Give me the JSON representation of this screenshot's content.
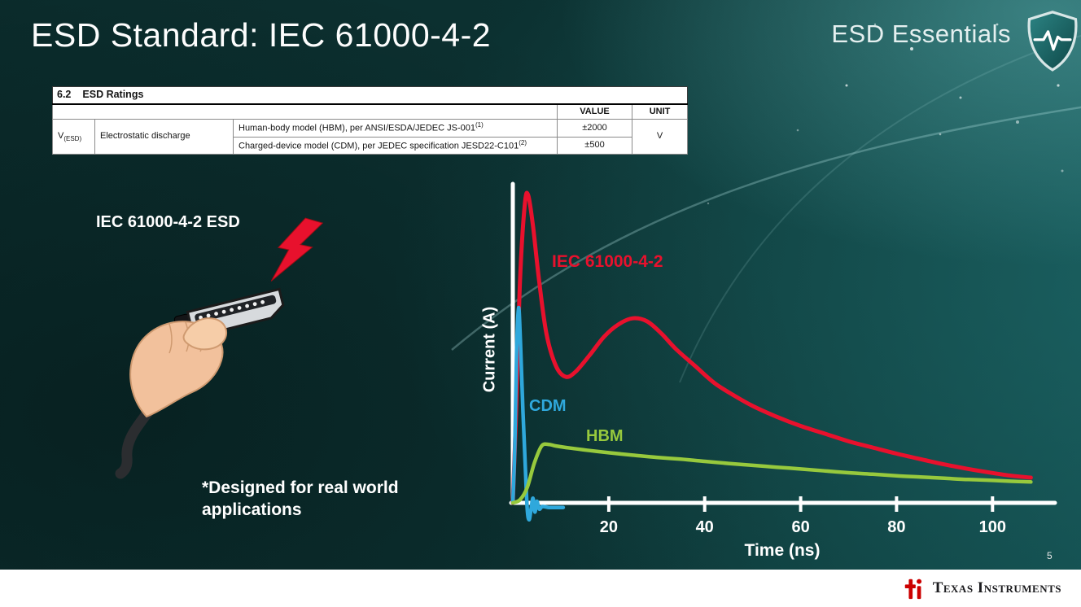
{
  "slide": {
    "title": "ESD Standard: IEC 61000-4-2",
    "brand": "ESD Essentials",
    "page_number": "5"
  },
  "colors": {
    "accent_red": "#e8112d",
    "cdm_blue": "#2fa8dc",
    "hbm_green": "#97c93d",
    "ti_red": "#cc0000",
    "axis_white": "#ffffff"
  },
  "table": {
    "section_number": "6.2",
    "section_title": "ESD Ratings",
    "headers": {
      "value": "VALUE",
      "unit": "UNIT"
    },
    "symbol": "V",
    "symbol_sub": "(ESD)",
    "parameter": "Electrostatic discharge",
    "rows": [
      {
        "description": "Human-body model (HBM), per ANSI/ESDA/JEDEC JS-001",
        "footnote": "(1)",
        "value": "±2000"
      },
      {
        "description": "Charged-device model (CDM), per JEDEC specification JESD22-C101",
        "footnote": "(2)",
        "value": "±500"
      }
    ],
    "unit": "V"
  },
  "illustration": {
    "label": "IEC 61000-4-2 ESD",
    "note": "*Designed for real world\napplications"
  },
  "chart_data": {
    "type": "line",
    "title": "",
    "xlabel": "Time (ns)",
    "ylabel": "Current (A)",
    "xlim": [
      0,
      112
    ],
    "ylim": [
      -0.08,
      1.05
    ],
    "x_ticks": [
      20,
      40,
      60,
      80,
      100
    ],
    "y_ticks": [],
    "grid": false,
    "legend_position": "inline-labels",
    "axis_color": "#ffffff",
    "series": [
      {
        "name": "IEC 61000-4-2",
        "color": "#e8112d",
        "stroke_width": 5,
        "points": [
          [
            0,
            0
          ],
          [
            0.7,
            0.3
          ],
          [
            1.5,
            0.72
          ],
          [
            2.5,
            0.97
          ],
          [
            3.2,
            1.0
          ],
          [
            4.2,
            0.9
          ],
          [
            5.5,
            0.72
          ],
          [
            7,
            0.55
          ],
          [
            9,
            0.445
          ],
          [
            11,
            0.41
          ],
          [
            13,
            0.425
          ],
          [
            16,
            0.48
          ],
          [
            19,
            0.54
          ],
          [
            22,
            0.58
          ],
          [
            25,
            0.6
          ],
          [
            28,
            0.59
          ],
          [
            31,
            0.55
          ],
          [
            34,
            0.5
          ],
          [
            38,
            0.445
          ],
          [
            42,
            0.39
          ],
          [
            46,
            0.35
          ],
          [
            50,
            0.315
          ],
          [
            55,
            0.28
          ],
          [
            60,
            0.25
          ],
          [
            65,
            0.225
          ],
          [
            70,
            0.2
          ],
          [
            75,
            0.18
          ],
          [
            80,
            0.16
          ],
          [
            85,
            0.142
          ],
          [
            90,
            0.125
          ],
          [
            95,
            0.11
          ],
          [
            100,
            0.097
          ],
          [
            104,
            0.088
          ],
          [
            108,
            0.082
          ]
        ]
      },
      {
        "name": "CDM",
        "color": "#2fa8dc",
        "stroke_width": 4.5,
        "points": [
          [
            0,
            0
          ],
          [
            0.4,
            0.18
          ],
          [
            0.8,
            0.5
          ],
          [
            1.2,
            0.635
          ],
          [
            1.6,
            0.52
          ],
          [
            2.1,
            0.3
          ],
          [
            2.6,
            0.12
          ],
          [
            3,
            -0.02
          ],
          [
            3.4,
            -0.055
          ],
          [
            3.8,
            -0.02
          ],
          [
            4.2,
            0.015
          ],
          [
            4.6,
            -0.03
          ],
          [
            5,
            0.005
          ],
          [
            5.5,
            -0.02
          ],
          [
            6.2,
            -0.012
          ],
          [
            7.5,
            -0.015
          ],
          [
            9,
            -0.015
          ],
          [
            10.5,
            -0.015
          ]
        ]
      },
      {
        "name": "HBM",
        "color": "#97c93d",
        "stroke_width": 4.5,
        "points": [
          [
            0,
            0
          ],
          [
            1.5,
            0.01
          ],
          [
            3,
            0.05
          ],
          [
            4.5,
            0.13
          ],
          [
            6,
            0.185
          ],
          [
            7.5,
            0.19
          ],
          [
            9,
            0.185
          ],
          [
            12,
            0.178
          ],
          [
            16,
            0.17
          ],
          [
            20,
            0.163
          ],
          [
            25,
            0.155
          ],
          [
            30,
            0.148
          ],
          [
            35,
            0.142
          ],
          [
            40,
            0.135
          ],
          [
            45,
            0.128
          ],
          [
            50,
            0.122
          ],
          [
            55,
            0.116
          ],
          [
            60,
            0.11
          ],
          [
            65,
            0.104
          ],
          [
            70,
            0.098
          ],
          [
            75,
            0.093
          ],
          [
            80,
            0.088
          ],
          [
            85,
            0.084
          ],
          [
            90,
            0.08
          ],
          [
            95,
            0.076
          ],
          [
            100,
            0.073
          ],
          [
            104,
            0.07
          ],
          [
            108,
            0.068
          ]
        ]
      }
    ]
  },
  "footer": {
    "wordmark": "Texas Instruments"
  }
}
